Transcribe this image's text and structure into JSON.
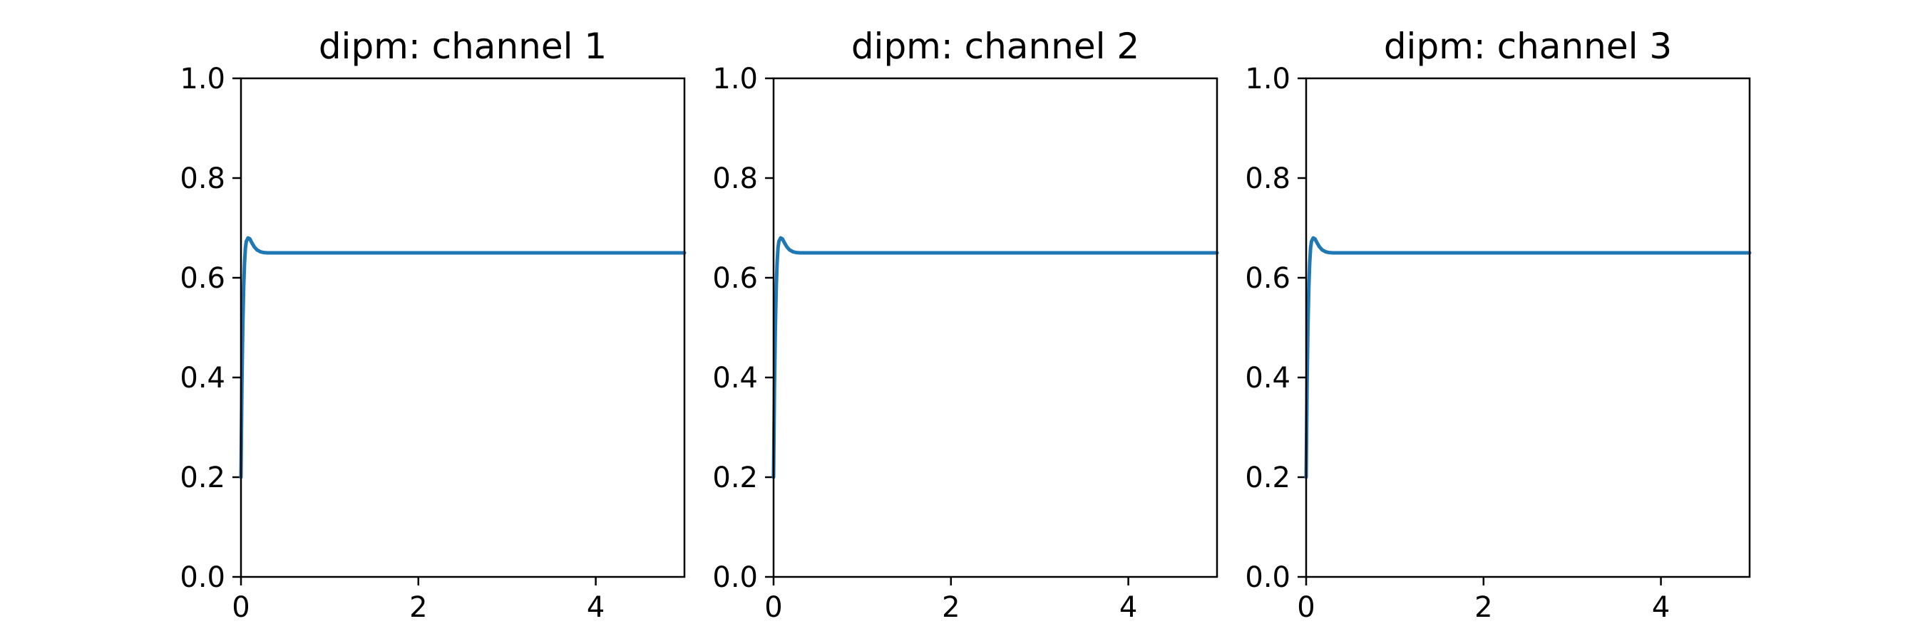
{
  "chart_data": [
    {
      "type": "line",
      "title": "dipm: channel 1",
      "xlabel": "",
      "ylabel": "",
      "xlim": [
        0,
        5
      ],
      "ylim": [
        0,
        1.0
      ],
      "xticks": [
        0,
        2,
        4
      ],
      "xtick_labels": [
        "0",
        "2",
        "4"
      ],
      "yticks": [
        0.0,
        0.2,
        0.4,
        0.6,
        0.8,
        1.0
      ],
      "ytick_labels": [
        "0.0",
        "0.2",
        "0.4",
        "0.6",
        "0.8",
        "1.0"
      ],
      "grid": false,
      "series": [
        {
          "name": "channel 1",
          "color": "#1f77b4",
          "x": [
            0,
            0.01,
            0.02,
            0.03,
            0.04,
            0.05,
            0.06,
            0.08,
            0.1,
            0.12,
            0.15,
            0.18,
            0.22,
            0.26,
            0.3,
            0.4,
            0.5,
            1,
            2,
            3,
            4,
            5
          ],
          "y": [
            0.2,
            0.38,
            0.5,
            0.58,
            0.63,
            0.66,
            0.673,
            0.68,
            0.678,
            0.671,
            0.662,
            0.656,
            0.652,
            0.6505,
            0.65,
            0.65,
            0.65,
            0.65,
            0.65,
            0.65,
            0.65,
            0.65
          ]
        }
      ]
    },
    {
      "type": "line",
      "title": "dipm: channel 2",
      "xlabel": "",
      "ylabel": "",
      "xlim": [
        0,
        5
      ],
      "ylim": [
        0,
        1.0
      ],
      "xticks": [
        0,
        2,
        4
      ],
      "xtick_labels": [
        "0",
        "2",
        "4"
      ],
      "yticks": [
        0.0,
        0.2,
        0.4,
        0.6,
        0.8,
        1.0
      ],
      "ytick_labels": [
        "0.0",
        "0.2",
        "0.4",
        "0.6",
        "0.8",
        "1.0"
      ],
      "grid": false,
      "series": [
        {
          "name": "channel 2",
          "color": "#1f77b4",
          "x": [
            0,
            0.01,
            0.02,
            0.03,
            0.04,
            0.05,
            0.06,
            0.08,
            0.1,
            0.12,
            0.15,
            0.18,
            0.22,
            0.26,
            0.3,
            0.4,
            0.5,
            1,
            2,
            3,
            4,
            5
          ],
          "y": [
            0.2,
            0.38,
            0.5,
            0.58,
            0.63,
            0.66,
            0.673,
            0.68,
            0.678,
            0.671,
            0.662,
            0.656,
            0.652,
            0.6505,
            0.65,
            0.65,
            0.65,
            0.65,
            0.65,
            0.65,
            0.65,
            0.65
          ]
        }
      ]
    },
    {
      "type": "line",
      "title": "dipm: channel 3",
      "xlabel": "",
      "ylabel": "",
      "xlim": [
        0,
        5
      ],
      "ylim": [
        0,
        1.0
      ],
      "xticks": [
        0,
        2,
        4
      ],
      "xtick_labels": [
        "0",
        "2",
        "4"
      ],
      "yticks": [
        0.0,
        0.2,
        0.4,
        0.6,
        0.8,
        1.0
      ],
      "ytick_labels": [
        "0.0",
        "0.2",
        "0.4",
        "0.6",
        "0.8",
        "1.0"
      ],
      "grid": false,
      "series": [
        {
          "name": "channel 3",
          "color": "#1f77b4",
          "x": [
            0,
            0.01,
            0.02,
            0.03,
            0.04,
            0.05,
            0.06,
            0.08,
            0.1,
            0.12,
            0.15,
            0.18,
            0.22,
            0.26,
            0.3,
            0.4,
            0.5,
            1,
            2,
            3,
            4,
            5
          ],
          "y": [
            0.2,
            0.38,
            0.5,
            0.58,
            0.63,
            0.66,
            0.673,
            0.68,
            0.678,
            0.671,
            0.662,
            0.656,
            0.652,
            0.6505,
            0.65,
            0.65,
            0.65,
            0.65,
            0.65,
            0.65,
            0.65,
            0.65
          ]
        }
      ]
    }
  ]
}
